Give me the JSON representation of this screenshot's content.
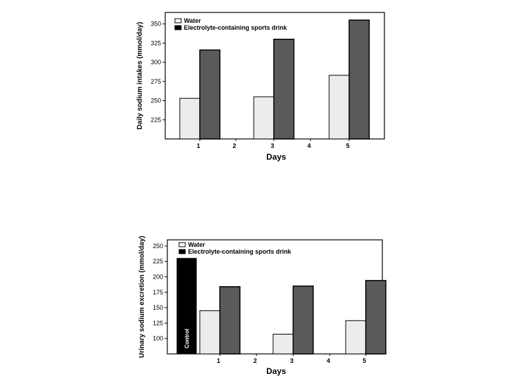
{
  "chart_data": [
    {
      "type": "bar",
      "categories": [
        "1",
        "2",
        "3",
        "4",
        "5"
      ],
      "xlabel": "Days",
      "ylabel": "Daily sodium intakes (mmol/day)",
      "ylim": [
        200,
        365
      ],
      "yticks": [
        225,
        250,
        275,
        300,
        325,
        350
      ],
      "legend": "top-left",
      "grid": false,
      "series": [
        {
          "name": "Water",
          "color": "#ececec",
          "values": [
            253,
            null,
            255,
            null,
            283
          ]
        },
        {
          "name": "Electrolyte-containing sports drink",
          "color": "#5a5a5a",
          "values": [
            316,
            null,
            330,
            null,
            355
          ]
        }
      ]
    },
    {
      "type": "bar",
      "categories": [
        "1",
        "2",
        "3",
        "4",
        "5"
      ],
      "xlabel": "Days",
      "ylabel": "Urinary sodium excretion (mmol/day)",
      "ylim": [
        75,
        260
      ],
      "yticks": [
        100,
        125,
        150,
        175,
        200,
        225,
        250
      ],
      "legend": "top-left",
      "grid": false,
      "control": {
        "label": "Control",
        "value": 230,
        "color": "#000000"
      },
      "series": [
        {
          "name": "Water",
          "color": "#ececec",
          "values": [
            145,
            null,
            107,
            null,
            129
          ]
        },
        {
          "name": "Electrolyte-containing sports drink",
          "color": "#5a5a5a",
          "values": [
            184,
            null,
            185,
            null,
            194
          ]
        }
      ]
    }
  ]
}
